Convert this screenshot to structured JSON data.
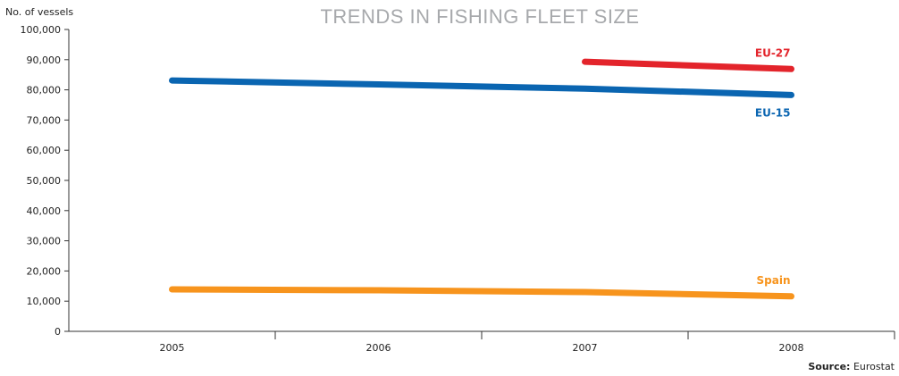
{
  "chart_data": {
    "type": "line",
    "title": "TRENDS IN FISHING FLEET SIZE",
    "ylabel": "No. of vessels",
    "xlabel": "",
    "categories": [
      "2005",
      "2006",
      "2007",
      "2008"
    ],
    "ylim": [
      0,
      100000
    ],
    "yticks": [
      "0",
      "10,000",
      "20,000",
      "30,000",
      "40,000",
      "50,000",
      "60,000",
      "70,000",
      "80,000",
      "90,000",
      "100,000"
    ],
    "grid": false,
    "series": [
      {
        "name": "EU-27",
        "color": "#e3242b",
        "values": [
          null,
          null,
          89300,
          86900
        ]
      },
      {
        "name": "EU-15",
        "color": "#0a65b1",
        "values": [
          83100,
          81800,
          80400,
          78300
        ]
      },
      {
        "name": "Spain",
        "color": "#f7941d",
        "values": [
          13900,
          13600,
          13000,
          11600
        ]
      }
    ],
    "source_label": "Source:",
    "source_value": "Eurostat"
  }
}
